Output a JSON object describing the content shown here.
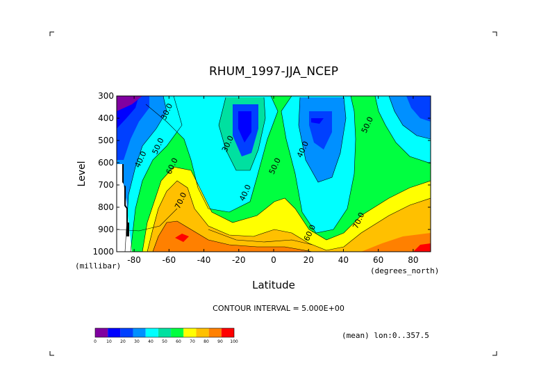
{
  "chart_data": {
    "type": "heatmap",
    "title": "RHUM_1997-JJA_NCEP",
    "xlabel": "Latitude",
    "ylabel": "Level",
    "x_units": "(degrees_north)",
    "y_units": "(millibar)",
    "xlim": [
      -90,
      90
    ],
    "ylim": [
      1000,
      300
    ],
    "x_ticks": [
      -80,
      -60,
      -40,
      -20,
      0,
      20,
      40,
      60,
      80
    ],
    "x_tick_labels": [
      "-80",
      "-60",
      "-40",
      "-20",
      "0",
      "20",
      "40",
      "60",
      "80"
    ],
    "y_ticks": [
      300,
      400,
      500,
      600,
      700,
      800,
      900,
      1000
    ],
    "y_tick_labels": [
      "300",
      "400",
      "500",
      "600",
      "700",
      "800",
      "900",
      "1000"
    ],
    "contour_interval_text": "CONTOUR INTERVAL = 5.000E+00",
    "annotation": "(mean) lon:0..357.5",
    "contour_labels": [
      {
        "text": "30.0",
        "lat": -60,
        "lev": 375
      },
      {
        "text": "40.0",
        "lat": -75,
        "lev": 590
      },
      {
        "text": "50.0",
        "lat": -65,
        "lev": 530
      },
      {
        "text": "60.0",
        "lat": -57,
        "lev": 620
      },
      {
        "text": "70.0",
        "lat": -52,
        "lev": 775
      },
      {
        "text": "30.0",
        "lat": -25,
        "lev": 520
      },
      {
        "text": "40.0",
        "lat": -15,
        "lev": 740
      },
      {
        "text": "50.0",
        "lat": 2,
        "lev": 620
      },
      {
        "text": "40.0",
        "lat": 18,
        "lev": 545
      },
      {
        "text": "60.0",
        "lat": 22,
        "lev": 920
      },
      {
        "text": "50.0",
        "lat": 55,
        "lev": 435
      },
      {
        "text": "70.0",
        "lat": 50,
        "lev": 865
      }
    ],
    "colorbar": {
      "levels": [
        "0",
        "10",
        "20",
        "30",
        "40",
        "50",
        "60",
        "70",
        "80",
        "90",
        "100"
      ],
      "colors": [
        "#8000a0",
        "#0000ff",
        "#0040ff",
        "#0090ff",
        "#00ffff",
        "#00e0a0",
        "#00ff40",
        "#ffff00",
        "#ffc000",
        "#ff8000",
        "#ff0000"
      ]
    }
  }
}
